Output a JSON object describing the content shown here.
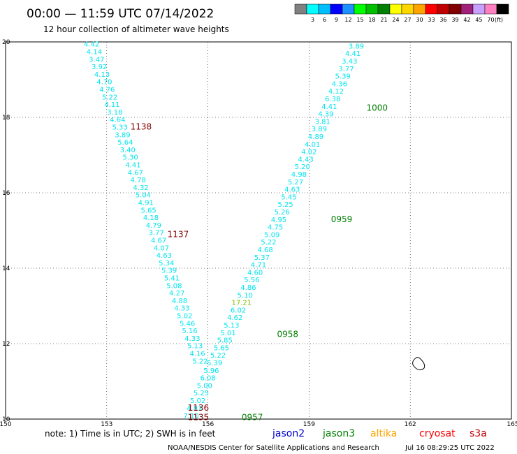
{
  "header": {
    "title": "00:00 — 11:59 UTC 07/14/2022",
    "subtitle": "12 hour collection of altimeter wave heights"
  },
  "color_scale": {
    "colors": [
      "#808080",
      "#00ffff",
      "#00bfff",
      "#0000ff",
      "#1e90ff",
      "#00ff00",
      "#00bf00",
      "#008000",
      "#ffff00",
      "#ffd700",
      "#ffa500",
      "#ff0000",
      "#c00000",
      "#800000",
      "#a0207a",
      "#c8a0ff",
      "#ff80c0",
      "#000000"
    ],
    "labels": [
      "3",
      "6",
      "9",
      "12",
      "15",
      "18",
      "21",
      "24",
      "27",
      "30",
      "33",
      "36",
      "39",
      "42",
      "45",
      "70"
    ],
    "unit": "(ft)"
  },
  "chart_data": {
    "type": "scatter",
    "title": "00:00 — 11:59 UTC 07/14/2022",
    "xlabel": "",
    "ylabel": "",
    "xlim": [
      150,
      165
    ],
    "ylim": [
      10,
      20
    ],
    "x_ticks": [
      "150",
      "153",
      "156",
      "159",
      "162",
      "165"
    ],
    "y_ticks": [
      "10",
      "12",
      "14",
      "16",
      "18",
      "20"
    ],
    "grid": true,
    "tracks": [
      {
        "name": "track_descending",
        "color": "#00e5ee",
        "points": [
          {
            "x": 152.55,
            "y": 19.95,
            "v": "4.42"
          },
          {
            "x": 152.63,
            "y": 19.75,
            "v": "4.14"
          },
          {
            "x": 152.7,
            "y": 19.55,
            "v": "3.47"
          },
          {
            "x": 152.78,
            "y": 19.35,
            "v": "3.92"
          },
          {
            "x": 152.86,
            "y": 19.15,
            "v": "4.13"
          },
          {
            "x": 152.93,
            "y": 18.95,
            "v": "4.70"
          },
          {
            "x": 153.01,
            "y": 18.75,
            "v": "4.76"
          },
          {
            "x": 153.09,
            "y": 18.55,
            "v": "5.22"
          },
          {
            "x": 153.16,
            "y": 18.35,
            "v": "4.11"
          },
          {
            "x": 153.24,
            "y": 18.15,
            "v": "3.18"
          },
          {
            "x": 153.32,
            "y": 17.95,
            "v": "4.64"
          },
          {
            "x": 153.39,
            "y": 17.75,
            "v": "5.33"
          },
          {
            "x": 153.47,
            "y": 17.55,
            "v": "3.89"
          },
          {
            "x": 153.55,
            "y": 17.35,
            "v": "5.64"
          },
          {
            "x": 153.62,
            "y": 17.15,
            "v": "3.40"
          },
          {
            "x": 153.7,
            "y": 16.95,
            "v": "5.30"
          },
          {
            "x": 153.78,
            "y": 16.75,
            "v": "4.41"
          },
          {
            "x": 153.85,
            "y": 16.55,
            "v": "4.67"
          },
          {
            "x": 153.93,
            "y": 16.35,
            "v": "4.78"
          },
          {
            "x": 154.01,
            "y": 16.15,
            "v": "4.32"
          },
          {
            "x": 154.08,
            "y": 15.95,
            "v": "5.04"
          },
          {
            "x": 154.16,
            "y": 15.75,
            "v": "4.91"
          },
          {
            "x": 154.24,
            "y": 15.55,
            "v": "5.65"
          },
          {
            "x": 154.31,
            "y": 15.35,
            "v": "4.18"
          },
          {
            "x": 154.39,
            "y": 15.15,
            "v": "4.79"
          },
          {
            "x": 154.47,
            "y": 14.95,
            "v": "3.77"
          },
          {
            "x": 154.54,
            "y": 14.75,
            "v": "4.67"
          },
          {
            "x": 154.62,
            "y": 14.55,
            "v": "4.07"
          },
          {
            "x": 154.7,
            "y": 14.35,
            "v": "4.63"
          },
          {
            "x": 154.77,
            "y": 14.15,
            "v": "5.34"
          },
          {
            "x": 154.85,
            "y": 13.95,
            "v": "5.39"
          },
          {
            "x": 154.93,
            "y": 13.75,
            "v": "5.41"
          },
          {
            "x": 155.0,
            "y": 13.55,
            "v": "5.08"
          },
          {
            "x": 155.08,
            "y": 13.35,
            "v": "4.27"
          },
          {
            "x": 155.16,
            "y": 13.15,
            "v": "4.88"
          },
          {
            "x": 155.23,
            "y": 12.95,
            "v": "4.33"
          },
          {
            "x": 155.31,
            "y": 12.75,
            "v": "5.02"
          },
          {
            "x": 155.39,
            "y": 12.55,
            "v": "5.46"
          },
          {
            "x": 155.46,
            "y": 12.35,
            "v": "5.16"
          },
          {
            "x": 155.54,
            "y": 12.15,
            "v": "4.33"
          },
          {
            "x": 155.62,
            "y": 11.95,
            "v": "5.13"
          },
          {
            "x": 155.69,
            "y": 11.75,
            "v": "4.16"
          },
          {
            "x": 155.77,
            "y": 11.55,
            "v": "5.22"
          }
        ]
      },
      {
        "name": "track_ascending",
        "color": "#00e5ee",
        "points": [
          {
            "x": 160.4,
            "y": 19.9,
            "v": "3.89"
          },
          {
            "x": 160.3,
            "y": 19.7,
            "v": "4.41"
          },
          {
            "x": 160.2,
            "y": 19.5,
            "v": "3.43"
          },
          {
            "x": 160.1,
            "y": 19.3,
            "v": "3.77"
          },
          {
            "x": 160.0,
            "y": 19.1,
            "v": "5.39"
          },
          {
            "x": 159.9,
            "y": 18.9,
            "v": "4.36"
          },
          {
            "x": 159.8,
            "y": 18.7,
            "v": "4.12"
          },
          {
            "x": 159.7,
            "y": 18.5,
            "v": "6.38"
          },
          {
            "x": 159.6,
            "y": 18.3,
            "v": "4.41"
          },
          {
            "x": 159.5,
            "y": 18.1,
            "v": "4.39"
          },
          {
            "x": 159.4,
            "y": 17.9,
            "v": "3.81"
          },
          {
            "x": 159.3,
            "y": 17.7,
            "v": "3.89"
          },
          {
            "x": 159.2,
            "y": 17.5,
            "v": "4.89"
          },
          {
            "x": 159.1,
            "y": 17.3,
            "v": "4.01"
          },
          {
            "x": 159.0,
            "y": 17.1,
            "v": "4.02"
          },
          {
            "x": 158.9,
            "y": 16.9,
            "v": "4.43"
          },
          {
            "x": 158.8,
            "y": 16.7,
            "v": "5.20"
          },
          {
            "x": 158.7,
            "y": 16.5,
            "v": "4.98"
          },
          {
            "x": 158.6,
            "y": 16.3,
            "v": "5.27"
          },
          {
            "x": 158.5,
            "y": 16.1,
            "v": "4.63"
          },
          {
            "x": 158.4,
            "y": 15.9,
            "v": "5.45"
          },
          {
            "x": 158.3,
            "y": 15.7,
            "v": "5.25"
          },
          {
            "x": 158.2,
            "y": 15.5,
            "v": "5.26"
          },
          {
            "x": 158.1,
            "y": 15.3,
            "v": "4.95"
          },
          {
            "x": 158.0,
            "y": 15.1,
            "v": "4.75"
          },
          {
            "x": 157.9,
            "y": 14.9,
            "v": "5.09"
          },
          {
            "x": 157.8,
            "y": 14.7,
            "v": "5.22"
          },
          {
            "x": 157.7,
            "y": 14.5,
            "v": "4.68"
          },
          {
            "x": 157.6,
            "y": 14.3,
            "v": "5.37"
          },
          {
            "x": 157.5,
            "y": 14.1,
            "v": "4.71"
          },
          {
            "x": 157.4,
            "y": 13.9,
            "v": "4.60"
          },
          {
            "x": 157.3,
            "y": 13.7,
            "v": "5.56"
          },
          {
            "x": 157.2,
            "y": 13.5,
            "v": "4.86"
          },
          {
            "x": 157.1,
            "y": 13.3,
            "v": "5.10"
          },
          {
            "x": 157.0,
            "y": 13.1,
            "v": "17.21",
            "c": "#7cc000"
          },
          {
            "x": 156.9,
            "y": 12.9,
            "v": "6.02"
          },
          {
            "x": 156.8,
            "y": 12.7,
            "v": "4.62"
          },
          {
            "x": 156.7,
            "y": 12.5,
            "v": "5.13"
          },
          {
            "x": 156.6,
            "y": 12.3,
            "v": "5.01"
          },
          {
            "x": 156.5,
            "y": 12.1,
            "v": "5.85"
          },
          {
            "x": 156.4,
            "y": 11.9,
            "v": "5.65"
          },
          {
            "x": 156.3,
            "y": 11.7,
            "v": "5.22"
          },
          {
            "x": 156.2,
            "y": 11.5,
            "v": "5.39"
          },
          {
            "x": 156.1,
            "y": 11.3,
            "v": "5.96"
          },
          {
            "x": 156.0,
            "y": 11.1,
            "v": "6.08"
          },
          {
            "x": 155.9,
            "y": 10.9,
            "v": "5.00"
          },
          {
            "x": 155.8,
            "y": 10.7,
            "v": "5.25"
          },
          {
            "x": 155.7,
            "y": 10.5,
            "v": "5.02"
          },
          {
            "x": 155.6,
            "y": 10.3,
            "v": "4.83"
          },
          {
            "x": 155.5,
            "y": 10.1,
            "v": "7.10"
          }
        ]
      }
    ],
    "time_labels": [
      {
        "x": 153.7,
        "y": 17.75,
        "t": "1138",
        "color": "#800000"
      },
      {
        "x": 154.8,
        "y": 14.9,
        "t": "1137",
        "color": "#800000"
      },
      {
        "x": 155.4,
        "y": 10.3,
        "t": "1136",
        "color": "#800000"
      },
      {
        "x": 155.4,
        "y": 10.05,
        "t": "1135",
        "color": "#800000"
      },
      {
        "x": 160.7,
        "y": 18.25,
        "t": "1000",
        "color": "#008000"
      },
      {
        "x": 159.65,
        "y": 15.3,
        "t": "0959",
        "color": "#008000"
      },
      {
        "x": 158.05,
        "y": 12.25,
        "t": "0958",
        "color": "#008000"
      },
      {
        "x": 157.0,
        "y": 10.05,
        "t": "0957",
        "color": "#008000"
      }
    ]
  },
  "note": "note: 1) Time is in UTC; 2) SWH is in feet",
  "satellites": [
    {
      "name": "jason2",
      "color": "#0000cd"
    },
    {
      "name": "jason3",
      "color": "#008000"
    },
    {
      "name": "altika",
      "color": "#ffa500"
    },
    {
      "name": "cryosat",
      "color": "#ff0000"
    },
    {
      "name": "s3a",
      "color": "#c00000"
    }
  ],
  "footer": {
    "credit": "NOAA/NESDIS Center for Satellite Applications and Research",
    "timestamp": "Jul 16 08:29:25 UTC 2022"
  }
}
